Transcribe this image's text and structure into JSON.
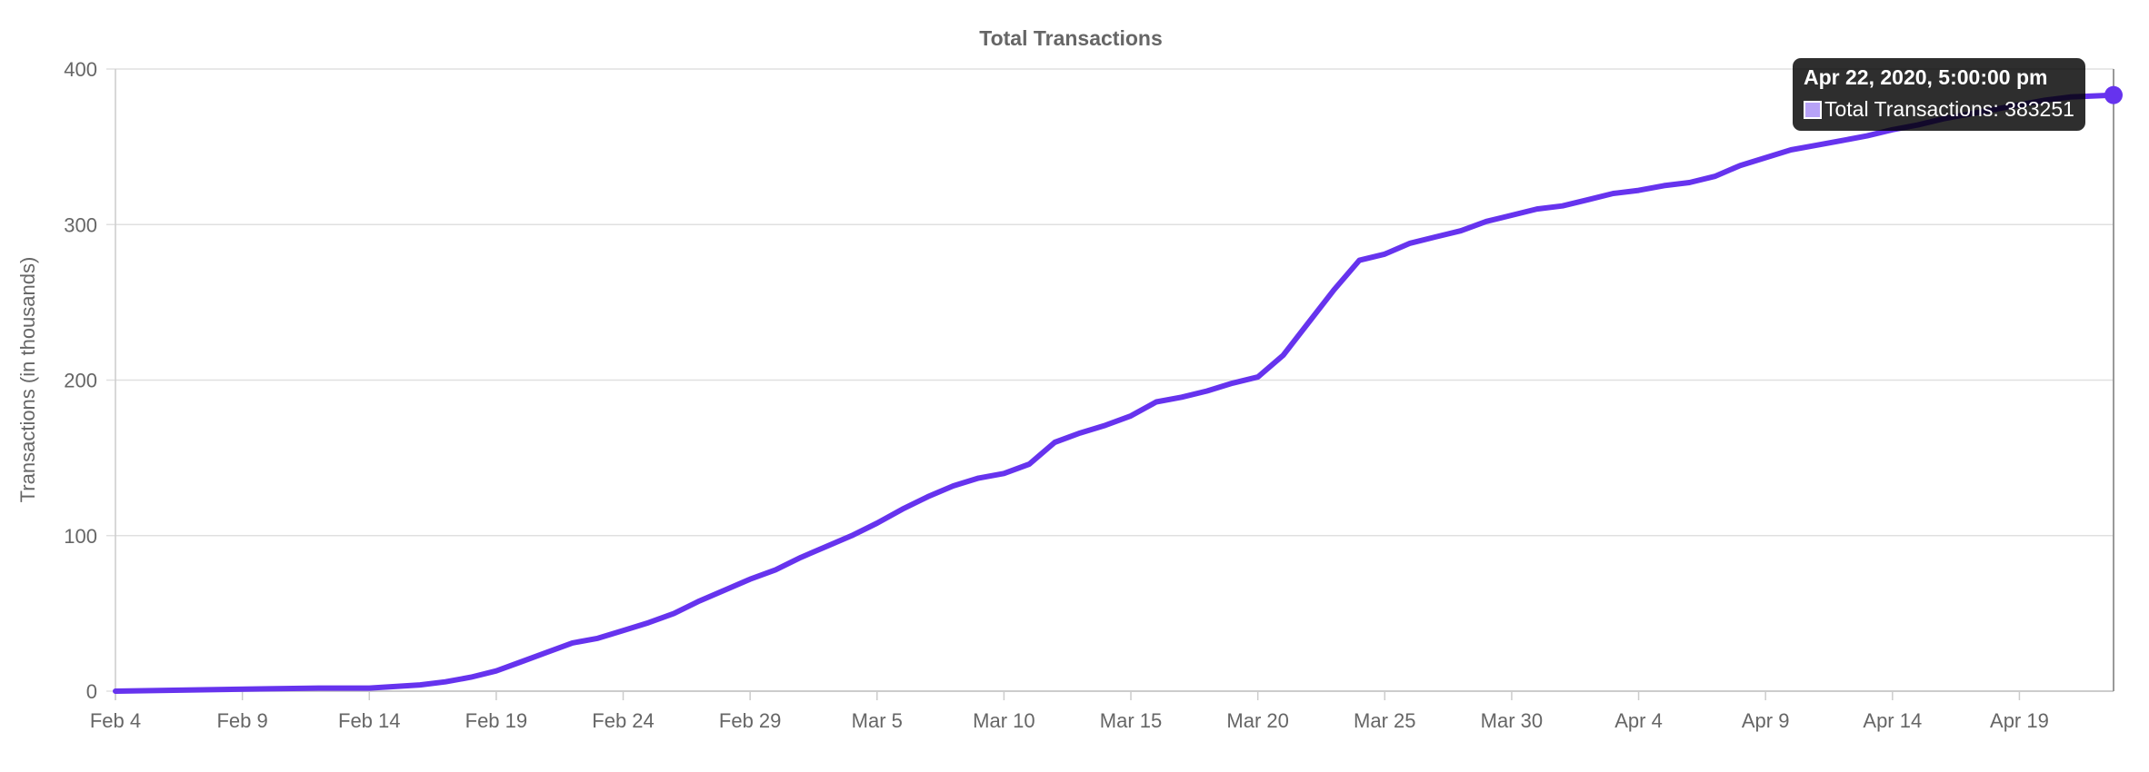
{
  "chart_data": {
    "type": "line",
    "title": "Total Transactions",
    "ylabel": "Transactions (in thousands)",
    "xlabel": "",
    "ylim": [
      0,
      400
    ],
    "yticks": [
      0,
      100,
      200,
      300,
      400
    ],
    "xticks": [
      "Feb 4",
      "Feb 9",
      "Feb 14",
      "Feb 19",
      "Feb 24",
      "Feb 29",
      "Mar 5",
      "Mar 10",
      "Mar 15",
      "Mar 20",
      "Mar 25",
      "Mar 30",
      "Apr 4",
      "Apr 9",
      "Apr 14",
      "Apr 19"
    ],
    "grid": true,
    "colors": {
      "line": "#6633ee",
      "grid": "#e0e0e0",
      "axis": "#666666"
    },
    "series": [
      {
        "name": "Total Transactions",
        "x": [
          "2020-02-04",
          "2020-02-06",
          "2020-02-08",
          "2020-02-10",
          "2020-02-12",
          "2020-02-14",
          "2020-02-16",
          "2020-02-17",
          "2020-02-18",
          "2020-02-19",
          "2020-02-20",
          "2020-02-21",
          "2020-02-22",
          "2020-02-23",
          "2020-02-24",
          "2020-02-25",
          "2020-02-26",
          "2020-02-27",
          "2020-02-28",
          "2020-02-29",
          "2020-03-01",
          "2020-03-02",
          "2020-03-03",
          "2020-03-04",
          "2020-03-05",
          "2020-03-06",
          "2020-03-07",
          "2020-03-08",
          "2020-03-09",
          "2020-03-10",
          "2020-03-11",
          "2020-03-12",
          "2020-03-13",
          "2020-03-14",
          "2020-03-15",
          "2020-03-16",
          "2020-03-17",
          "2020-03-18",
          "2020-03-19",
          "2020-03-20",
          "2020-03-21",
          "2020-03-22",
          "2020-03-23",
          "2020-03-24",
          "2020-03-25",
          "2020-03-26",
          "2020-03-27",
          "2020-03-28",
          "2020-03-29",
          "2020-03-30",
          "2020-03-31",
          "2020-04-01",
          "2020-04-02",
          "2020-04-03",
          "2020-04-04",
          "2020-04-05",
          "2020-04-06",
          "2020-04-07",
          "2020-04-08",
          "2020-04-09",
          "2020-04-10",
          "2020-04-11",
          "2020-04-12",
          "2020-04-13",
          "2020-04-14",
          "2020-04-15",
          "2020-04-16",
          "2020-04-17",
          "2020-04-18",
          "2020-04-19",
          "2020-04-20",
          "2020-04-21",
          "2020-04-22"
        ],
        "values": [
          0,
          0.5,
          1,
          1.5,
          2,
          2,
          4,
          6,
          9,
          13,
          19,
          25,
          31,
          34,
          39,
          44,
          50,
          58,
          65,
          72,
          78,
          86,
          93,
          100,
          108,
          117,
          125,
          132,
          137,
          140,
          146,
          160,
          166,
          171,
          177,
          186,
          189,
          193,
          198,
          202,
          216,
          237,
          258,
          277,
          281,
          288,
          292,
          296,
          302,
          306,
          310,
          312,
          316,
          320,
          322,
          325,
          327,
          331,
          338,
          343,
          348,
          351,
          354,
          357,
          361,
          364,
          368,
          371,
          374,
          377,
          380,
          382,
          383.251
        ]
      }
    ],
    "tooltip": {
      "title": "Apr 22, 2020, 5:00:00 pm",
      "label": "Total Transactions: 383251"
    }
  }
}
